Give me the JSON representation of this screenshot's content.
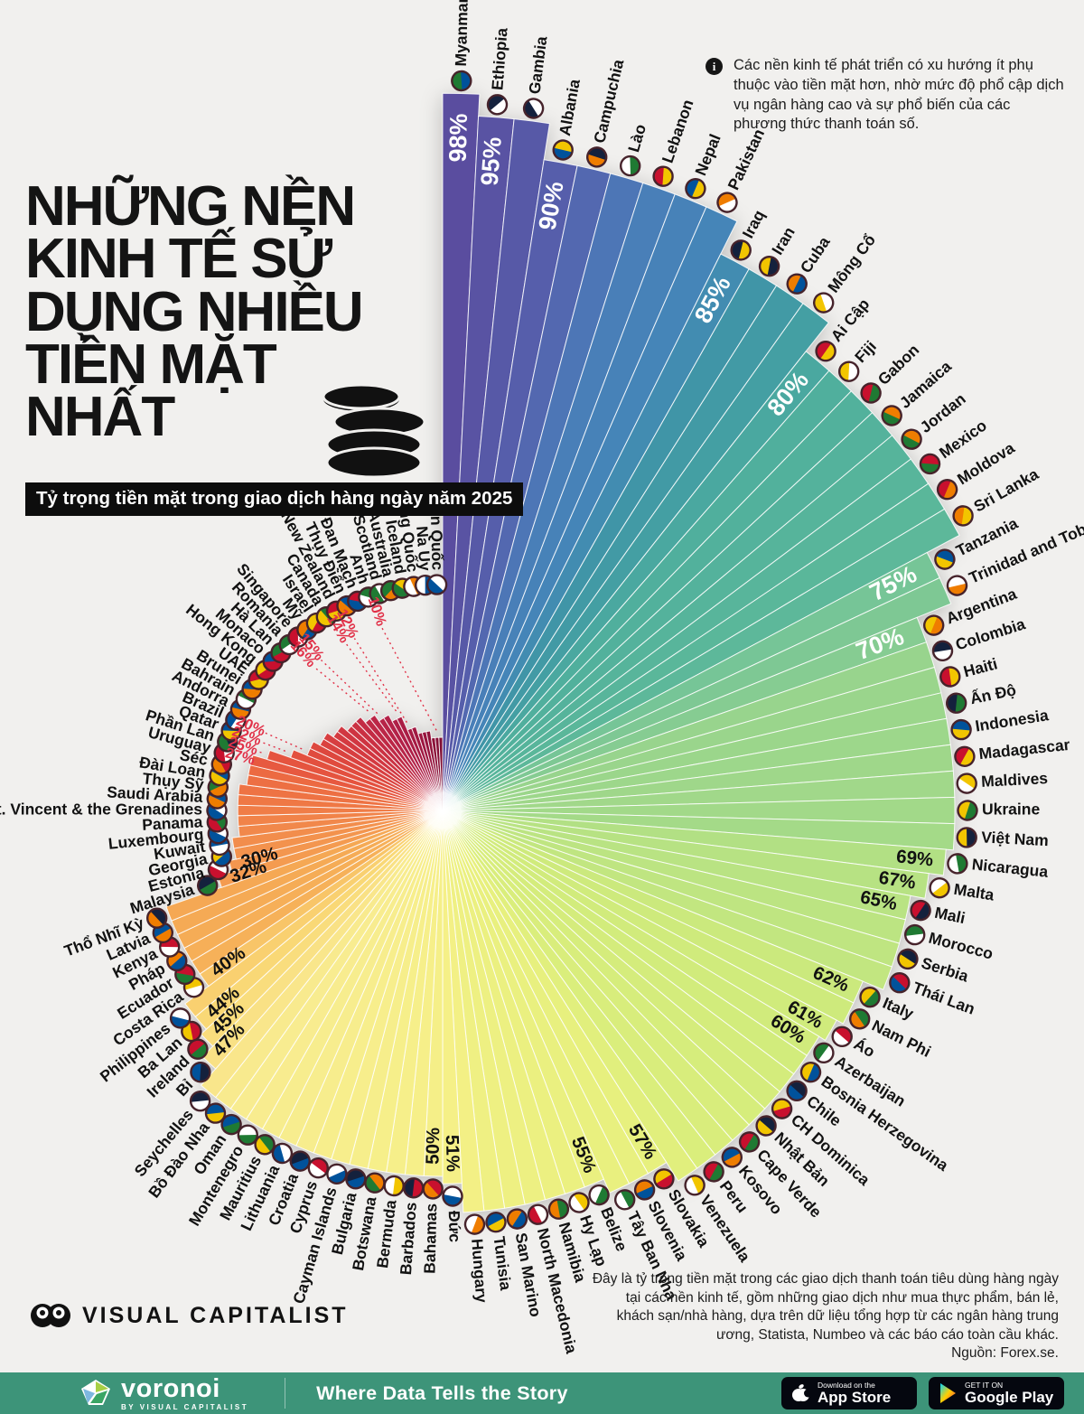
{
  "header": {
    "title_lines": [
      "NHỮNG NỀN",
      "KINH TẾ SỬ",
      "DỤNG NHIỀU",
      "TIỀN MẶT",
      "NHẤT"
    ],
    "subtitle": "Tỷ trọng tiền mặt trong giao dịch hàng ngày năm 2025",
    "info_note": "Các nền kinh tế phát triển có xu hướng ít phụ thuộc vào tiền mặt hơn, nhờ mức độ phổ cập dịch vụ ngân hàng cao và sự phổ biến của các phương thức thanh toán số."
  },
  "footer": {
    "source_note": "Đây là tỷ trọng tiền mặt trong các giao dịch thanh toán tiêu dùng hàng ngày tại các nền kinh tế, gồm những giao dịch như mua thực phẩm, bán lẻ, khách sạn/nhà hàng, dựa trên dữ liệu tổng hợp từ các ngân hàng trung ương, Statista, Numbeo và các báo cáo toàn cầu khác.",
    "source_line": "Nguồn: Forex.se.",
    "brand": "VISUAL CAPITALIST",
    "bar": {
      "logo": "voronoi",
      "logo_sub": "BY VISUAL CAPITALIST",
      "tagline": "Where Data Tells the Story",
      "appstore": {
        "small": "Download on the",
        "big": "App Store"
      },
      "gplay": {
        "small": "GET IT ON",
        "big": "Google Play"
      }
    }
  },
  "colors": {
    "background": "#f1f0ee",
    "footer_green": "#3d9479",
    "red_label": "#e13148",
    "inside_label": "#ffffff",
    "outside_label": "#111111",
    "palette_stops": [
      [
        0.0,
        "#5a4d9f"
      ],
      [
        0.03,
        "#5562ae"
      ],
      [
        0.045,
        "#4a7db8"
      ],
      [
        0.07,
        "#4486b8"
      ],
      [
        0.08,
        "#3f94a8"
      ],
      [
        0.105,
        "#45a2a2"
      ],
      [
        0.11,
        "#4fae9d"
      ],
      [
        0.165,
        "#5cb89a"
      ],
      [
        0.172,
        "#74c497"
      ],
      [
        0.19,
        "#86cc92"
      ],
      [
        0.195,
        "#97d48d"
      ],
      [
        0.26,
        "#a5da88"
      ],
      [
        0.265,
        "#b4e184"
      ],
      [
        0.31,
        "#c3e680"
      ],
      [
        0.315,
        "#cdea7c"
      ],
      [
        0.4,
        "#dbee7c"
      ],
      [
        0.41,
        "#e7f07e"
      ],
      [
        0.485,
        "#f0f083"
      ],
      [
        0.49,
        "#f5f087"
      ],
      [
        0.6,
        "#f8ec90"
      ],
      [
        0.615,
        "#f9e489"
      ],
      [
        0.635,
        "#f9d977"
      ],
      [
        0.645,
        "#f9d070"
      ],
      [
        0.655,
        "#f8c266"
      ],
      [
        0.66,
        "#f6b159"
      ],
      [
        0.695,
        "#f5a854"
      ],
      [
        0.7,
        "#f49c50"
      ],
      [
        0.73,
        "#f28c4c"
      ],
      [
        0.76,
        "#ef7845"
      ],
      [
        0.785,
        "#ec6a42"
      ],
      [
        0.79,
        "#e85b40"
      ],
      [
        0.82,
        "#e04a3e"
      ],
      [
        0.85,
        "#d43a40"
      ],
      [
        0.875,
        "#cb3242"
      ],
      [
        0.88,
        "#c52c44"
      ],
      [
        0.92,
        "#b22148"
      ],
      [
        0.96,
        "#9c1640"
      ],
      [
        1.0,
        "#7f0d33"
      ]
    ]
  },
  "chart_data": {
    "type": "bar",
    "variant": "radial",
    "title": "Tỷ trọng tiền mặt trong giao dịch hàng ngày năm 2025",
    "unit": "%",
    "ylim": [
      0,
      100
    ],
    "angle_start": "top",
    "direction": "clockwise",
    "legend_position": "none",
    "countries": [
      {
        "n": "Myanmar",
        "v": 98,
        "l": "98%",
        "s": "in"
      },
      {
        "n": "Ethiopia",
        "v": 95,
        "l": "95%",
        "s": "in"
      },
      {
        "n": "Gambia",
        "v": 95
      },
      {
        "n": "Albania",
        "v": 90,
        "l": "90%",
        "s": "in"
      },
      {
        "n": "Campuchia",
        "v": 90
      },
      {
        "n": "Lào",
        "v": 90
      },
      {
        "n": "Lebanon",
        "v": 90
      },
      {
        "n": "Nepal",
        "v": 90
      },
      {
        "n": "Pakistan",
        "v": 90
      },
      {
        "n": "Iraq",
        "v": 85,
        "l": "85%",
        "s": "in"
      },
      {
        "n": "Iran",
        "v": 85
      },
      {
        "n": "Cuba",
        "v": 85
      },
      {
        "n": "Mông Cổ",
        "v": 85
      },
      {
        "n": "Ai Cập",
        "v": 80,
        "l": "80%",
        "s": "in"
      },
      {
        "n": "Fiji",
        "v": 80
      },
      {
        "n": "Gabon",
        "v": 80
      },
      {
        "n": "Jamaica",
        "v": 80
      },
      {
        "n": "Jordan",
        "v": 80
      },
      {
        "n": "Mexico",
        "v": 80
      },
      {
        "n": "Moldova",
        "v": 80
      },
      {
        "n": "Sri Lanka",
        "v": 80
      },
      {
        "n": "Tanzania",
        "v": 75,
        "l": "75%",
        "s": "in"
      },
      {
        "n": "Trinidad and Tobago",
        "v": 75
      },
      {
        "n": "Argentina",
        "v": 70,
        "l": "70%",
        "s": "in"
      },
      {
        "n": "Colombia",
        "v": 70
      },
      {
        "n": "Haiti",
        "v": 70
      },
      {
        "n": "Ấn Độ",
        "v": 70
      },
      {
        "n": "Indonesia",
        "v": 70
      },
      {
        "n": "Madagascar",
        "v": 70
      },
      {
        "n": "Maldives",
        "v": 70
      },
      {
        "n": "Ukraine",
        "v": 70
      },
      {
        "n": "Việt Nam",
        "v": 70
      },
      {
        "n": "Nicaragua",
        "v": 69,
        "l": "69%",
        "s": "out"
      },
      {
        "n": "Malta",
        "v": 67,
        "l": "67%",
        "s": "out"
      },
      {
        "n": "Mali",
        "v": 65,
        "l": "65%",
        "s": "out"
      },
      {
        "n": "Morocco",
        "v": 65
      },
      {
        "n": "Serbia",
        "v": 65
      },
      {
        "n": "Thái Lan",
        "v": 65
      },
      {
        "n": "Italy",
        "v": 62,
        "l": "62%",
        "s": "out"
      },
      {
        "n": "Nam Phi",
        "v": 62
      },
      {
        "n": "Áo",
        "v": 61,
        "l": "61%",
        "s": "out"
      },
      {
        "n": "Azerbaijan",
        "v": 60,
        "l": "60%",
        "s": "out"
      },
      {
        "n": "Bosnia Herzegovina",
        "v": 60
      },
      {
        "n": "Chile",
        "v": 60
      },
      {
        "n": "CH Dominica",
        "v": 60
      },
      {
        "n": "Nhật Bản",
        "v": 60
      },
      {
        "n": "Cape Verde",
        "v": 60
      },
      {
        "n": "Kosovo",
        "v": 60
      },
      {
        "n": "Peru",
        "v": 60
      },
      {
        "n": "Venezuela",
        "v": 60
      },
      {
        "n": "Slovakia",
        "v": 57,
        "l": "57%",
        "s": "out"
      },
      {
        "n": "Slovenia",
        "v": 57
      },
      {
        "n": "Tây Ban Nha",
        "v": 57
      },
      {
        "n": "Belize",
        "v": 55,
        "l": "55%",
        "s": "out"
      },
      {
        "n": "Hy Lạp",
        "v": 55
      },
      {
        "n": "Namibia",
        "v": 55
      },
      {
        "n": "North Macedonia",
        "v": 55
      },
      {
        "n": "San Marino",
        "v": 55
      },
      {
        "n": "Tunisia",
        "v": 55
      },
      {
        "n": "Hungary",
        "v": 55
      },
      {
        "n": "Đức",
        "v": 51,
        "l": "51%",
        "s": "out"
      },
      {
        "n": "Bahamas",
        "v": 50,
        "l": "50%",
        "s": "out"
      },
      {
        "n": "Barbados",
        "v": 50
      },
      {
        "n": "Bermuda",
        "v": 50
      },
      {
        "n": "Botswana",
        "v": 50
      },
      {
        "n": "Bulgaria",
        "v": 50
      },
      {
        "n": "Cayman Islands",
        "v": 50
      },
      {
        "n": "Cyprus",
        "v": 50
      },
      {
        "n": "Croatia",
        "v": 50
      },
      {
        "n": "Lithuania",
        "v": 50
      },
      {
        "n": "Mauritius",
        "v": 50
      },
      {
        "n": "Montenegro",
        "v": 50
      },
      {
        "n": "Oman",
        "v": 50
      },
      {
        "n": "Bồ Đào Nha",
        "v": 50
      },
      {
        "n": "Seychelles",
        "v": 50
      },
      {
        "n": "Bỉ",
        "v": 47,
        "l": "47%",
        "s": "out"
      },
      {
        "n": "Ireland",
        "v": 45,
        "l": "45%",
        "s": "out"
      },
      {
        "n": "Ba Lan",
        "v": 44,
        "l": "44%",
        "s": "out"
      },
      {
        "n": "Philippines",
        "v": 44
      },
      {
        "n": "Costa Rica",
        "v": 40,
        "l": "40%",
        "s": "out"
      },
      {
        "n": "Ecuador",
        "v": 40
      },
      {
        "n": "Pháp",
        "v": 40
      },
      {
        "n": "Kenya",
        "v": 40
      },
      {
        "n": "Latvia",
        "v": 40
      },
      {
        "n": "Thổ Nhĩ Kỳ",
        "v": 40
      },
      {
        "n": "Malaysia",
        "v": 32,
        "l": "32%",
        "s": "out"
      },
      {
        "n": "Estonia",
        "v": 30,
        "l": "30%",
        "s": "out"
      },
      {
        "n": "Georgia",
        "v": 29
      },
      {
        "n": "Kuwait",
        "v": 29
      },
      {
        "n": "Luxembourg",
        "v": 28
      },
      {
        "n": "Panama",
        "v": 28
      },
      {
        "n": "St. Vincent & the Grenadines",
        "v": 28
      },
      {
        "n": "Saudi Arabia",
        "v": 28
      },
      {
        "n": "Thụy Sỹ",
        "v": 28
      },
      {
        "n": "Đài Loan",
        "v": 27
      },
      {
        "n": "Séc",
        "v": 27
      },
      {
        "n": "Uruguay",
        "v": 27,
        "l": "27%",
        "s": "lead"
      },
      {
        "n": "Phần Lan",
        "v": 25,
        "l": "25%",
        "s": "lead"
      },
      {
        "n": "Qatar",
        "v": 22,
        "l": "22%",
        "s": "lead"
      },
      {
        "n": "Brazil",
        "v": 20,
        "l": "20%",
        "s": "lead"
      },
      {
        "n": "Andorra",
        "v": 20
      },
      {
        "n": "Bahrain",
        "v": 19
      },
      {
        "n": "Brunei",
        "v": 19
      },
      {
        "n": "UAE",
        "v": 18
      },
      {
        "n": "Hong Kong",
        "v": 18
      },
      {
        "n": "Monaco",
        "v": 17
      },
      {
        "n": "Hà Lan",
        "v": 17
      },
      {
        "n": "Romania",
        "v": 17
      },
      {
        "n": "Singapore",
        "v": 16
      },
      {
        "n": "Mỹ",
        "v": 16,
        "l": "16%",
        "s": "lead"
      },
      {
        "n": "Israel",
        "v": 15,
        "l": "15%",
        "s": "lead"
      },
      {
        "n": "Canada",
        "v": 15
      },
      {
        "n": "New Zealand",
        "v": 14
      },
      {
        "n": "Thụy Điển",
        "v": 14,
        "l": "14%",
        "s": "lead"
      },
      {
        "n": "Đan Mạch",
        "v": 12,
        "l": "12%",
        "s": "lead"
      },
      {
        "n": "Anh",
        "v": 12
      },
      {
        "n": "Scotland",
        "v": 11
      },
      {
        "n": "Australia",
        "v": 11
      },
      {
        "n": "Iceland",
        "v": 11
      },
      {
        "n": "Trung Quốc",
        "v": 10
      },
      {
        "n": "Na Uy",
        "v": 10,
        "l": "10%",
        "s": "lead"
      },
      {
        "n": "Hàn Quốc",
        "v": 10
      }
    ]
  }
}
